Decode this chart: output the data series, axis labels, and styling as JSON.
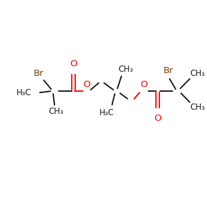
{
  "bg_color": "#ffffff",
  "bond_color": "#1a1a1a",
  "oxygen_color": "#ff0000",
  "bromine_color": "#7b3f00",
  "carbon_color": "#1a1a1a",
  "figsize": [
    3.0,
    3.0
  ],
  "dpi": 100,
  "xlim": [
    0,
    300
  ],
  "ylim": [
    0,
    300
  ]
}
